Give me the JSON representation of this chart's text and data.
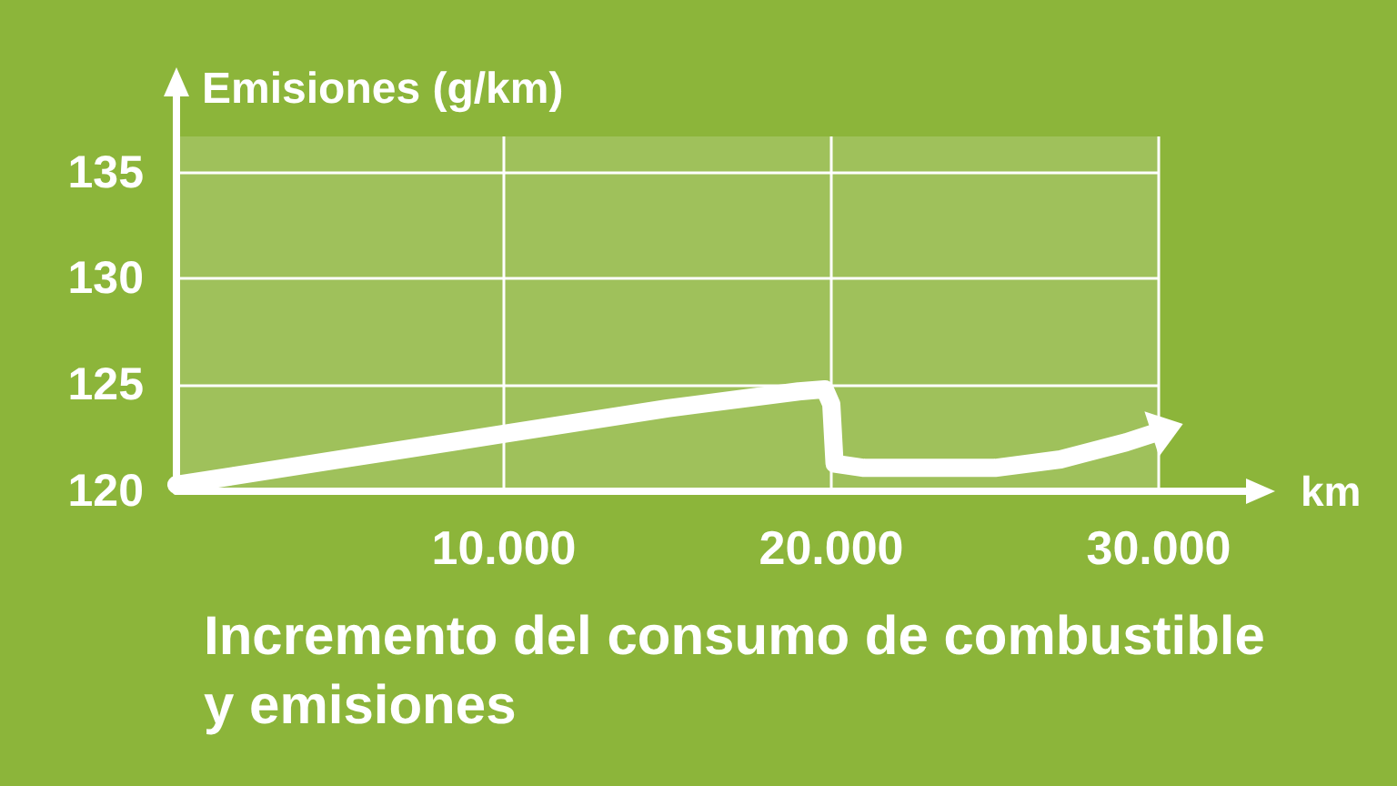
{
  "chart_data": {
    "type": "line",
    "title": "Incremento del consumo de combustible y emisiones",
    "ylabel": "Emisiones (g/km)",
    "xlabel": "km",
    "x": [
      0,
      5000,
      10000,
      15000,
      19000,
      19800,
      20000,
      20100,
      21000,
      25000,
      27000,
      29000,
      30000
    ],
    "series": [
      {
        "color": "#ffffff",
        "values": [
          120.3,
          121.5,
          122.7,
          123.9,
          124.7,
          124.8,
          124.1,
          121.3,
          121.1,
          121.1,
          121.5,
          122.3,
          122.8
        ]
      }
    ],
    "xlim": [
      0,
      30000
    ],
    "ylim": [
      120,
      136.7
    ],
    "xticks": [
      {
        "value": 10000,
        "label": "10.000"
      },
      {
        "value": 20000,
        "label": "20.000"
      },
      {
        "value": 30000,
        "label": "30.000"
      }
    ],
    "yticks": [
      120,
      125,
      130,
      135
    ],
    "grid": true,
    "line_style": "solid"
  }
}
